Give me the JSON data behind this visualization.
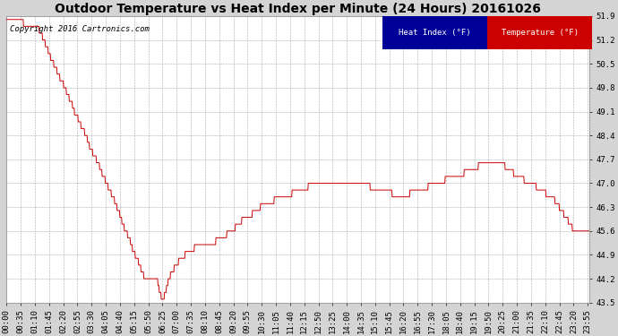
{
  "title": "Outdoor Temperature vs Heat Index per Minute (24 Hours) 20161026",
  "copyright": "Copyright 2016 Cartronics.com",
  "legend_heat_index": "Heat Index (°F)",
  "legend_temperature": "Temperature (°F)",
  "ylim": [
    43.5,
    51.9
  ],
  "yticks": [
    43.5,
    44.2,
    44.9,
    45.6,
    46.3,
    47.0,
    47.7,
    48.4,
    49.1,
    49.8,
    50.5,
    51.2,
    51.9
  ],
  "bg_color": "#d4d4d4",
  "plot_bg_color": "#ffffff",
  "grid_color": "#aaaaaa",
  "line_color": "#cc0000",
  "title_fontsize": 10,
  "copyright_fontsize": 6.5,
  "tick_fontsize": 6.5,
  "legend_fontsize": 6.5,
  "xtick_step": 35,
  "n_minutes": 1440,
  "figsize": [
    6.9,
    3.75
  ],
  "dpi": 100
}
